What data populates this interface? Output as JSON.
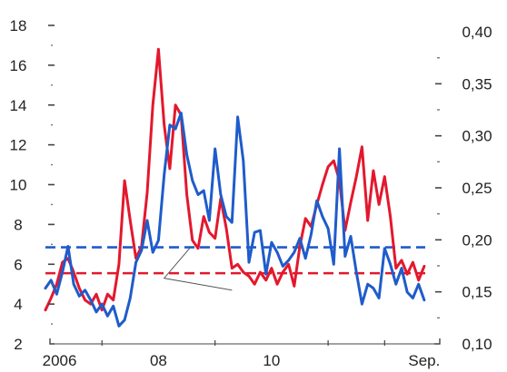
{
  "chart_data": {
    "type": "line",
    "title": "",
    "xlabel": "",
    "ylabel": "",
    "y_left": {
      "lim": [
        2,
        18
      ],
      "ticks": [
        2,
        4,
        6,
        8,
        10,
        12,
        14,
        16,
        18
      ],
      "tick_labels": [
        "2",
        "4",
        "6",
        "8",
        "10",
        "12",
        "14",
        "16",
        "18"
      ]
    },
    "y_right": {
      "lim": [
        0.1,
        0.4
      ],
      "ticks": [
        0.1,
        0.15,
        0.2,
        0.25,
        0.3,
        0.35,
        0.4
      ],
      "tick_labels": [
        "0,10",
        "0,15",
        "0,20",
        "0,25",
        "0,30",
        "0,35",
        "0,40"
      ]
    },
    "x": {
      "lim": [
        2006.0,
        2012.75
      ],
      "tick_labels": [
        "2006",
        "08",
        "10",
        "Sep."
      ],
      "tick_positions": [
        2006.25,
        2008.0,
        2010.0,
        2012.7
      ]
    },
    "grid": false,
    "legend": "none",
    "series": [
      {
        "axis": "left",
        "color": "#e3182d",
        "x": [
          2006.0,
          2006.1,
          2006.2,
          2006.3,
          2006.4,
          2006.5,
          2006.6,
          2006.7,
          2006.8,
          2006.9,
          2007.0,
          2007.1,
          2007.2,
          2007.3,
          2007.4,
          2007.5,
          2007.6,
          2007.7,
          2007.8,
          2007.9,
          2008.0,
          2008.1,
          2008.2,
          2008.3,
          2008.4,
          2008.5,
          2008.6,
          2008.7,
          2008.8,
          2008.9,
          2009.0,
          2009.1,
          2009.2,
          2009.3,
          2009.4,
          2009.5,
          2009.6,
          2009.7,
          2009.8,
          2009.9,
          2010.0,
          2010.1,
          2010.2,
          2010.3,
          2010.4,
          2010.5,
          2010.6,
          2010.7,
          2010.8,
          2010.9,
          2011.0,
          2011.1,
          2011.2,
          2011.3,
          2011.4,
          2011.5,
          2011.6,
          2011.7,
          2011.8,
          2011.9,
          2012.0,
          2012.1,
          2012.2,
          2012.3,
          2012.4,
          2012.5,
          2012.6,
          2012.7
        ],
        "values": [
          3.7,
          4.3,
          5.0,
          6.1,
          6.3,
          5.6,
          4.8,
          4.2,
          4.0,
          4.5,
          3.7,
          4.5,
          4.2,
          6.0,
          10.2,
          8.2,
          6.3,
          6.9,
          9.6,
          14.0,
          16.8,
          13.0,
          10.8,
          14.0,
          13.5,
          9.5,
          7.2,
          6.8,
          8.4,
          7.6,
          7.3,
          9.3,
          7.8,
          5.8,
          6.0,
          5.6,
          5.4,
          5.0,
          5.6,
          5.2,
          5.8,
          5.0,
          5.6,
          6.0,
          4.9,
          6.9,
          8.3,
          7.9,
          9.0,
          10.0,
          10.9,
          11.2,
          10.2,
          7.7,
          9.1,
          10.4,
          11.9,
          8.2,
          10.7,
          9.0,
          10.4,
          8.4,
          5.8,
          6.2,
          5.5,
          6.1,
          5.2,
          5.9
        ]
      },
      {
        "axis": "left",
        "color": "#1f5ccb",
        "x": [
          2006.0,
          2006.1,
          2006.2,
          2006.3,
          2006.4,
          2006.5,
          2006.6,
          2006.7,
          2006.8,
          2006.9,
          2007.0,
          2007.1,
          2007.2,
          2007.3,
          2007.4,
          2007.5,
          2007.6,
          2007.7,
          2007.8,
          2007.9,
          2008.0,
          2008.1,
          2008.2,
          2008.3,
          2008.4,
          2008.5,
          2008.6,
          2008.7,
          2008.8,
          2008.9,
          2009.0,
          2009.1,
          2009.2,
          2009.3,
          2009.4,
          2009.5,
          2009.6,
          2009.7,
          2009.8,
          2009.9,
          2010.0,
          2010.1,
          2010.2,
          2010.3,
          2010.4,
          2010.5,
          2010.6,
          2010.7,
          2010.8,
          2010.9,
          2011.0,
          2011.1,
          2011.2,
          2011.3,
          2011.4,
          2011.5,
          2011.6,
          2011.7,
          2011.8,
          2011.9,
          2012.0,
          2012.1,
          2012.2,
          2012.3,
          2012.4,
          2012.5,
          2012.6,
          2012.7
        ],
        "values": [
          4.8,
          5.2,
          4.5,
          5.6,
          6.9,
          5.0,
          4.4,
          4.7,
          4.2,
          3.6,
          4.0,
          3.4,
          3.9,
          2.9,
          3.2,
          4.3,
          6.1,
          6.7,
          8.2,
          6.6,
          7.2,
          10.5,
          13.0,
          12.8,
          13.6,
          11.5,
          10.2,
          9.5,
          9.7,
          8.2,
          11.8,
          9.5,
          8.4,
          8.1,
          13.4,
          11.2,
          6.1,
          7.6,
          7.7,
          5.5,
          7.1,
          6.6,
          5.9,
          6.2,
          6.6,
          7.3,
          6.3,
          7.5,
          9.2,
          8.4,
          7.8,
          6.0,
          11.8,
          6.4,
          7.4,
          5.6,
          4.0,
          5.0,
          4.8,
          4.3,
          6.8,
          6.0,
          5.0,
          5.8,
          4.6,
          4.3,
          5.0,
          4.2
        ]
      }
    ],
    "reference_lines": [
      {
        "axis": "left",
        "value": 5.55,
        "color": "#e3182d",
        "style": "dashed"
      },
      {
        "axis": "left",
        "value": 6.85,
        "color": "#1f5ccb",
        "style": "dashed"
      }
    ]
  }
}
